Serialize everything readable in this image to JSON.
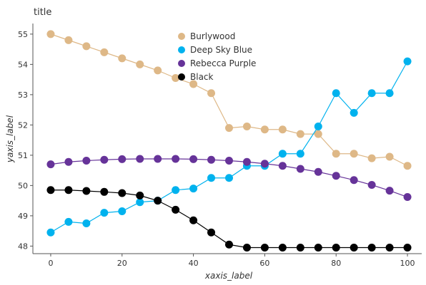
{
  "chart_data": {
    "type": "line",
    "title": "title",
    "xlabel": "xaxis_label",
    "ylabel": "yaxis_label",
    "xlim": [
      -5,
      104
    ],
    "ylim": [
      47.75,
      55.35
    ],
    "x_ticks": [
      0,
      20,
      40,
      60,
      80,
      100
    ],
    "y_ticks": [
      48,
      49,
      50,
      51,
      52,
      53,
      54,
      55
    ],
    "legend_position": "top-center",
    "grid": false,
    "series": [
      {
        "name": "Burlywood",
        "color": "#DEB887",
        "x": [
          0,
          5,
          10,
          15,
          20,
          25,
          30,
          35,
          40,
          45,
          50,
          55,
          60,
          65,
          70,
          75,
          80,
          85,
          90,
          95,
          100
        ],
        "y": [
          55.0,
          54.8,
          54.6,
          54.4,
          54.2,
          54.0,
          53.8,
          53.55,
          53.35,
          53.05,
          51.9,
          51.95,
          51.85,
          51.85,
          51.7,
          51.7,
          51.05,
          51.05,
          50.9,
          50.95,
          50.65
        ]
      },
      {
        "name": "Deep Sky Blue",
        "color": "#00B2EE",
        "x": [
          0,
          5,
          10,
          15,
          20,
          25,
          30,
          35,
          40,
          45,
          50,
          55,
          60,
          65,
          70,
          75,
          80,
          85,
          90,
          95,
          100
        ],
        "y": [
          48.45,
          48.8,
          48.75,
          49.1,
          49.15,
          49.45,
          49.5,
          49.85,
          49.9,
          50.25,
          50.25,
          50.65,
          50.65,
          51.05,
          51.05,
          51.95,
          53.05,
          52.4,
          53.05,
          53.05,
          54.1
        ]
      },
      {
        "name": "Rebecca Purple",
        "color": "#663399",
        "x": [
          0,
          5,
          10,
          15,
          20,
          25,
          30,
          35,
          40,
          45,
          50,
          55,
          60,
          65,
          70,
          75,
          80,
          85,
          90,
          95,
          100
        ],
        "y": [
          50.7,
          50.78,
          50.82,
          50.85,
          50.87,
          50.88,
          50.88,
          50.88,
          50.87,
          50.85,
          50.82,
          50.78,
          50.72,
          50.65,
          50.55,
          50.45,
          50.32,
          50.18,
          50.02,
          49.83,
          49.62
        ]
      },
      {
        "name": "Black",
        "color": "#000000",
        "x": [
          0,
          5,
          10,
          15,
          20,
          25,
          30,
          35,
          40,
          45,
          50,
          55,
          60,
          65,
          70,
          75,
          80,
          85,
          90,
          95,
          100
        ],
        "y": [
          49.85,
          49.85,
          49.82,
          49.79,
          49.75,
          49.67,
          49.5,
          49.2,
          48.85,
          48.45,
          48.05,
          47.95,
          47.95,
          47.95,
          47.95,
          47.95,
          47.95,
          47.95,
          47.95,
          47.95,
          47.95
        ]
      }
    ]
  }
}
